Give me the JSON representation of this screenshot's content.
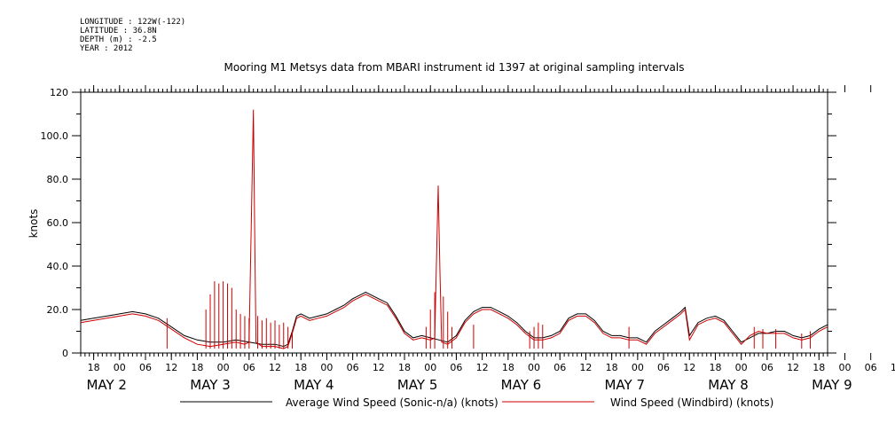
{
  "header": {
    "longitude": "LONGITUDE : 122W(-122)",
    "latitude": "LATITUDE : 36.8N",
    "depth": "DEPTH (m) : -2.5",
    "year": "YEAR : 2012"
  },
  "chart_data": {
    "type": "line",
    "title": "Mooring M1 Metsys data from MBARI instrument id 1397 at original sampling intervals",
    "ylabel": "knots",
    "xlabel": "",
    "ylim": [
      0,
      120
    ],
    "yticks": [
      0,
      20.0,
      40.0,
      60.0,
      80.0,
      100.0,
      120
    ],
    "ytick_labels": [
      "0",
      "20.0",
      "40.0",
      "60.0",
      "80.0",
      "100.0",
      "120"
    ],
    "xlim_hours": [
      -9,
      164
    ],
    "hour_tick_labels": [
      "18",
      "00",
      "06",
      "12",
      "18",
      "00",
      "06",
      "12",
      "18",
      "00",
      "06",
      "12",
      "18",
      "00",
      "06",
      "12",
      "18",
      "00",
      "06",
      "12",
      "18",
      "00",
      "06",
      "12",
      "18",
      "00",
      "06",
      "12",
      "18",
      "00",
      "06",
      "12"
    ],
    "day_labels": [
      {
        "month": "MAY",
        "day": "2"
      },
      {
        "month": "MAY",
        "day": "3"
      },
      {
        "month": "MAY",
        "day": "4"
      },
      {
        "month": "MAY",
        "day": "5"
      },
      {
        "month": "MAY",
        "day": "6"
      },
      {
        "month": "MAY",
        "day": "7"
      },
      {
        "month": "MAY",
        "day": "8"
      },
      {
        "month": "MAY",
        "day": "9"
      }
    ],
    "grid": false,
    "legend_position": "bottom",
    "series": [
      {
        "name": "Average Wind Speed (Sonic-n/a) (knots)",
        "color": "#000000",
        "points": [
          [
            -9,
            15
          ],
          [
            -6,
            16
          ],
          [
            -3,
            17
          ],
          [
            0,
            18
          ],
          [
            3,
            19
          ],
          [
            6,
            18
          ],
          [
            9,
            16
          ],
          [
            12,
            12
          ],
          [
            15,
            8
          ],
          [
            18,
            6
          ],
          [
            21,
            5
          ],
          [
            24,
            5
          ],
          [
            27,
            6
          ],
          [
            30,
            5
          ],
          [
            33,
            4
          ],
          [
            36,
            4
          ],
          [
            38,
            3
          ],
          [
            39,
            4
          ],
          [
            40,
            10
          ],
          [
            41,
            17
          ],
          [
            42,
            18
          ],
          [
            44,
            16
          ],
          [
            46,
            17
          ],
          [
            48,
            18
          ],
          [
            50,
            20
          ],
          [
            52,
            22
          ],
          [
            54,
            25
          ],
          [
            56,
            27
          ],
          [
            57,
            28
          ],
          [
            58,
            27
          ],
          [
            60,
            25
          ],
          [
            62,
            23
          ],
          [
            64,
            17
          ],
          [
            66,
            10
          ],
          [
            68,
            7
          ],
          [
            70,
            8
          ],
          [
            72,
            7
          ],
          [
            74,
            6
          ],
          [
            76,
            5
          ],
          [
            78,
            8
          ],
          [
            80,
            15
          ],
          [
            82,
            19
          ],
          [
            84,
            21
          ],
          [
            86,
            21
          ],
          [
            88,
            19
          ],
          [
            90,
            17
          ],
          [
            92,
            14
          ],
          [
            94,
            10
          ],
          [
            96,
            7
          ],
          [
            98,
            7
          ],
          [
            100,
            8
          ],
          [
            102,
            10
          ],
          [
            104,
            16
          ],
          [
            106,
            18
          ],
          [
            108,
            18
          ],
          [
            110,
            15
          ],
          [
            112,
            10
          ],
          [
            114,
            8
          ],
          [
            116,
            8
          ],
          [
            118,
            7
          ],
          [
            120,
            7
          ],
          [
            122,
            5
          ],
          [
            124,
            10
          ],
          [
            126,
            13
          ],
          [
            128,
            16
          ],
          [
            130,
            19
          ],
          [
            131,
            21
          ],
          [
            132,
            8
          ],
          [
            134,
            14
          ],
          [
            136,
            16
          ],
          [
            138,
            17
          ],
          [
            140,
            15
          ],
          [
            142,
            10
          ],
          [
            144,
            5
          ],
          [
            146,
            7
          ],
          [
            148,
            9
          ],
          [
            150,
            9
          ],
          [
            152,
            10
          ],
          [
            154,
            10
          ],
          [
            156,
            8
          ],
          [
            158,
            7
          ],
          [
            160,
            8
          ],
          [
            162,
            11
          ],
          [
            164,
            13
          ]
        ]
      },
      {
        "name": "Wind Speed (Windbird) (knots)",
        "color": "#cc0000",
        "points": [
          [
            -9,
            14
          ],
          [
            -6,
            15
          ],
          [
            -3,
            16
          ],
          [
            0,
            17
          ],
          [
            3,
            18
          ],
          [
            6,
            17
          ],
          [
            9,
            15
          ],
          [
            12,
            11
          ],
          [
            15,
            7
          ],
          [
            18,
            4
          ],
          [
            21,
            3
          ],
          [
            24,
            4
          ],
          [
            27,
            5
          ],
          [
            29,
            4
          ],
          [
            30,
            5
          ],
          [
            31,
            112
          ],
          [
            31.3,
            57
          ],
          [
            31.6,
            5
          ],
          [
            33,
            3
          ],
          [
            36,
            3
          ],
          [
            38,
            2
          ],
          [
            39,
            3
          ],
          [
            40,
            9
          ],
          [
            41,
            16
          ],
          [
            42,
            17
          ],
          [
            44,
            15
          ],
          [
            46,
            16
          ],
          [
            48,
            17
          ],
          [
            50,
            19
          ],
          [
            52,
            21
          ],
          [
            54,
            24
          ],
          [
            56,
            26
          ],
          [
            57,
            27
          ],
          [
            58,
            26
          ],
          [
            60,
            24
          ],
          [
            62,
            22
          ],
          [
            64,
            16
          ],
          [
            66,
            9
          ],
          [
            68,
            6
          ],
          [
            70,
            7
          ],
          [
            72,
            6
          ],
          [
            73,
            7
          ],
          [
            73.8,
            77
          ],
          [
            74.2,
            39
          ],
          [
            74.6,
            5
          ],
          [
            76,
            4
          ],
          [
            78,
            7
          ],
          [
            80,
            14
          ],
          [
            82,
            18
          ],
          [
            84,
            20
          ],
          [
            86,
            20
          ],
          [
            88,
            18
          ],
          [
            90,
            16
          ],
          [
            92,
            13
          ],
          [
            94,
            9
          ],
          [
            96,
            6
          ],
          [
            98,
            6
          ],
          [
            100,
            7
          ],
          [
            102,
            9
          ],
          [
            104,
            15
          ],
          [
            106,
            17
          ],
          [
            108,
            17
          ],
          [
            110,
            14
          ],
          [
            112,
            9
          ],
          [
            114,
            7
          ],
          [
            116,
            7
          ],
          [
            118,
            6
          ],
          [
            120,
            6
          ],
          [
            122,
            4
          ],
          [
            124,
            9
          ],
          [
            126,
            12
          ],
          [
            128,
            15
          ],
          [
            130,
            18
          ],
          [
            131,
            20
          ],
          [
            132,
            6
          ],
          [
            134,
            13
          ],
          [
            136,
            15
          ],
          [
            138,
            16
          ],
          [
            140,
            14
          ],
          [
            142,
            9
          ],
          [
            144,
            4
          ],
          [
            146,
            8
          ],
          [
            148,
            10
          ],
          [
            150,
            9
          ],
          [
            152,
            9
          ],
          [
            154,
            9
          ],
          [
            156,
            7
          ],
          [
            158,
            6
          ],
          [
            160,
            7
          ],
          [
            162,
            10
          ],
          [
            164,
            12
          ]
        ],
        "spikes": [
          [
            11,
            16
          ],
          [
            20,
            20
          ],
          [
            21,
            27
          ],
          [
            22,
            33
          ],
          [
            23,
            32
          ],
          [
            24,
            33
          ],
          [
            25,
            32
          ],
          [
            26,
            30
          ],
          [
            27,
            20
          ],
          [
            28,
            18
          ],
          [
            29,
            17
          ],
          [
            30,
            16
          ],
          [
            32,
            17
          ],
          [
            33,
            15
          ],
          [
            34,
            16
          ],
          [
            35,
            14
          ],
          [
            36,
            15
          ],
          [
            37,
            13
          ],
          [
            38,
            14
          ],
          [
            39,
            12
          ],
          [
            40,
            10
          ],
          [
            71,
            12
          ],
          [
            72,
            20
          ],
          [
            73,
            28
          ],
          [
            75,
            26
          ],
          [
            76,
            19
          ],
          [
            77,
            12
          ],
          [
            82,
            13
          ],
          [
            95,
            10
          ],
          [
            96,
            12
          ],
          [
            97,
            14
          ],
          [
            98,
            13
          ],
          [
            118,
            12
          ],
          [
            147,
            12
          ],
          [
            149,
            11
          ],
          [
            152,
            11
          ],
          [
            158,
            9
          ],
          [
            160,
            10
          ]
        ]
      }
    ]
  }
}
